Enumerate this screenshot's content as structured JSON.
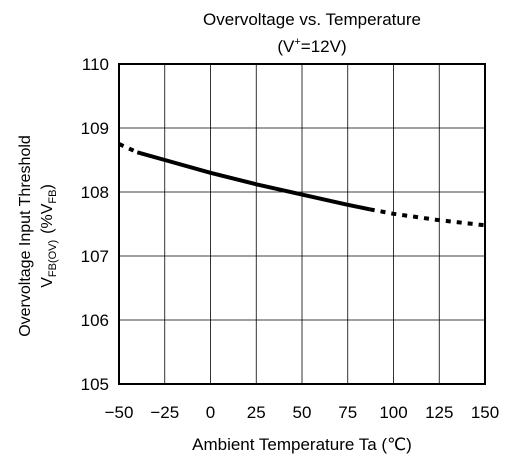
{
  "chart_data": {
    "type": "line",
    "title": "Overvoltage vs. Temperature",
    "subtitle": {
      "pre": "(V",
      "sup": "+",
      "post": "=12V)"
    },
    "xlabel": "Ambient Temperature Ta (℃)",
    "ylabel": {
      "line1": "Overvoltage Input Threshold",
      "line2_a": "V",
      "line2_a_sub": "FB(OV)",
      "line2_b": "(%V",
      "line2_b_sub": "FB",
      "line2_c": ")"
    },
    "xlim": [
      -50,
      150
    ],
    "ylim": [
      105,
      110
    ],
    "xticks": [
      -50,
      -25,
      0,
      25,
      50,
      75,
      100,
      125,
      150
    ],
    "yticks": [
      105,
      106,
      107,
      108,
      109,
      110
    ],
    "grid": true,
    "line_color": "#000000",
    "series": [
      {
        "style": "dotted",
        "x": [
          -50,
          -40
        ],
        "y": [
          108.75,
          108.62
        ]
      },
      {
        "style": "solid",
        "x": [
          -40,
          -25,
          0,
          25,
          50,
          75,
          87
        ],
        "y": [
          108.62,
          108.5,
          108.3,
          108.12,
          107.96,
          107.8,
          107.73
        ]
      },
      {
        "style": "dotted",
        "x": [
          87,
          100,
          125,
          150
        ],
        "y": [
          107.73,
          107.66,
          107.56,
          107.48
        ]
      }
    ]
  }
}
